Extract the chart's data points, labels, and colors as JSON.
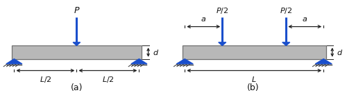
{
  "fig_width": 5.0,
  "fig_height": 1.38,
  "dpi": 100,
  "bg_color": "#ffffff",
  "beam_color": "#b8b8b8",
  "beam_edge_color": "#707070",
  "arrow_color": "#1a4fcc",
  "support_color": "#1a4fcc",
  "hatch_color": "#444444",
  "dim_color": "#222222",
  "text_color": "#111111",
  "label_a": "(a)",
  "label_b": "(b)"
}
